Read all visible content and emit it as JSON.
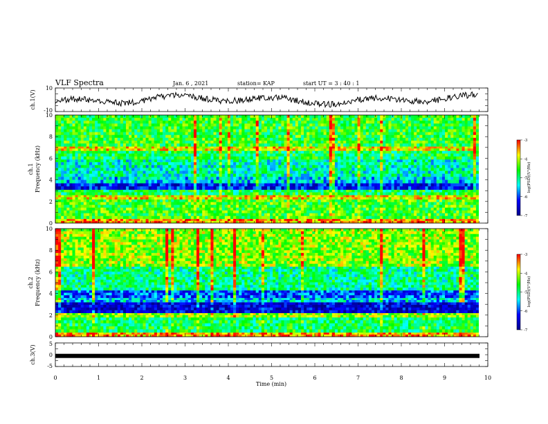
{
  "header": {
    "title": "VLF Spectra",
    "date": "Jan. 6 , 2021",
    "station": "station= KAP",
    "start_time": "start UT = 3 : 40 : 1"
  },
  "chart_data": [
    {
      "type": "line",
      "panel": "ch1-waveform",
      "ylabel": "ch.1(V)",
      "ylim": [
        -10,
        10
      ],
      "ytick_labels": [
        "10",
        "-10"
      ],
      "xlim": [
        0,
        10
      ],
      "series": [
        {
          "color": "#000000"
        }
      ]
    },
    {
      "type": "heatmap",
      "panel": "ch1-spectrogram",
      "ylabel": "ch.1\nFrequency (kHz)",
      "ylim": [
        0,
        10
      ],
      "ytick_labels": [
        "0",
        "2",
        "4",
        "6",
        "8",
        "10"
      ],
      "xlim": [
        0,
        10
      ],
      "colorbar": {
        "label": "log(PSD)(V²/Hz)",
        "range": [
          -7,
          -3
        ],
        "tick_labels": [
          "-3",
          "-4",
          "-5",
          "-6",
          "-7"
        ]
      },
      "bands_khz": [
        {
          "from": 0,
          "to": 0.4,
          "level": -3.5
        },
        {
          "from": 0.4,
          "to": 2.2,
          "level": -4.5
        },
        {
          "from": 2.2,
          "to": 2.6,
          "level": -3.8
        },
        {
          "from": 2.6,
          "to": 3.1,
          "level": -4.8
        },
        {
          "from": 3.1,
          "to": 3.7,
          "level": -6.3
        },
        {
          "from": 3.7,
          "to": 4.3,
          "level": -5.5
        },
        {
          "from": 4.3,
          "to": 5.9,
          "level": -5.2
        },
        {
          "from": 5.9,
          "to": 6.7,
          "level": -4.8
        },
        {
          "from": 6.7,
          "to": 7.1,
          "level": -3.8
        },
        {
          "from": 7.1,
          "to": 10,
          "level": -4.6
        }
      ]
    },
    {
      "type": "heatmap",
      "panel": "ch2-spectrogram",
      "ylabel": "ch.2\nFrequency (kHz)",
      "ylim": [
        0,
        10
      ],
      "ytick_labels": [
        "0",
        "2",
        "4",
        "6",
        "8",
        "10"
      ],
      "xlim": [
        0,
        10
      ],
      "colorbar": {
        "label": "log(PSD)(V²/Hz)",
        "range": [
          -7,
          -3
        ],
        "tick_labels": [
          "-3",
          "-4",
          "-5",
          "-6",
          "-7"
        ]
      },
      "bands_khz": [
        {
          "from": 0,
          "to": 0.4,
          "level": -3.5
        },
        {
          "from": 0.4,
          "to": 1.8,
          "level": -4.8
        },
        {
          "from": 1.8,
          "to": 2.2,
          "level": -4.2
        },
        {
          "from": 2.2,
          "to": 3.2,
          "level": -6.5
        },
        {
          "from": 3.2,
          "to": 3.6,
          "level": -5.5
        },
        {
          "from": 3.6,
          "to": 4.3,
          "level": -6.0
        },
        {
          "from": 4.3,
          "to": 6.5,
          "level": -5.0
        },
        {
          "from": 6.5,
          "to": 10,
          "level": -4.2
        }
      ]
    },
    {
      "type": "line",
      "panel": "ch3-waveform",
      "ylabel": "ch.3(V)",
      "ylim": [
        -5,
        5
      ],
      "ytick_labels": [
        "5",
        "0",
        "-5"
      ],
      "xlim": [
        0,
        10
      ],
      "xlabel": "Time (min)",
      "xtick_labels": [
        "0",
        "1",
        "2",
        "3",
        "4",
        "5",
        "6",
        "7",
        "8",
        "9",
        "10"
      ],
      "series": [
        {
          "color": "#000000",
          "values": [
            -0.5,
            -0.5
          ]
        }
      ]
    }
  ],
  "colors": {
    "colormap": [
      "#00008c",
      "#0000ff",
      "#00ffff",
      "#00ff00",
      "#ffff00",
      "#ff0000"
    ]
  }
}
